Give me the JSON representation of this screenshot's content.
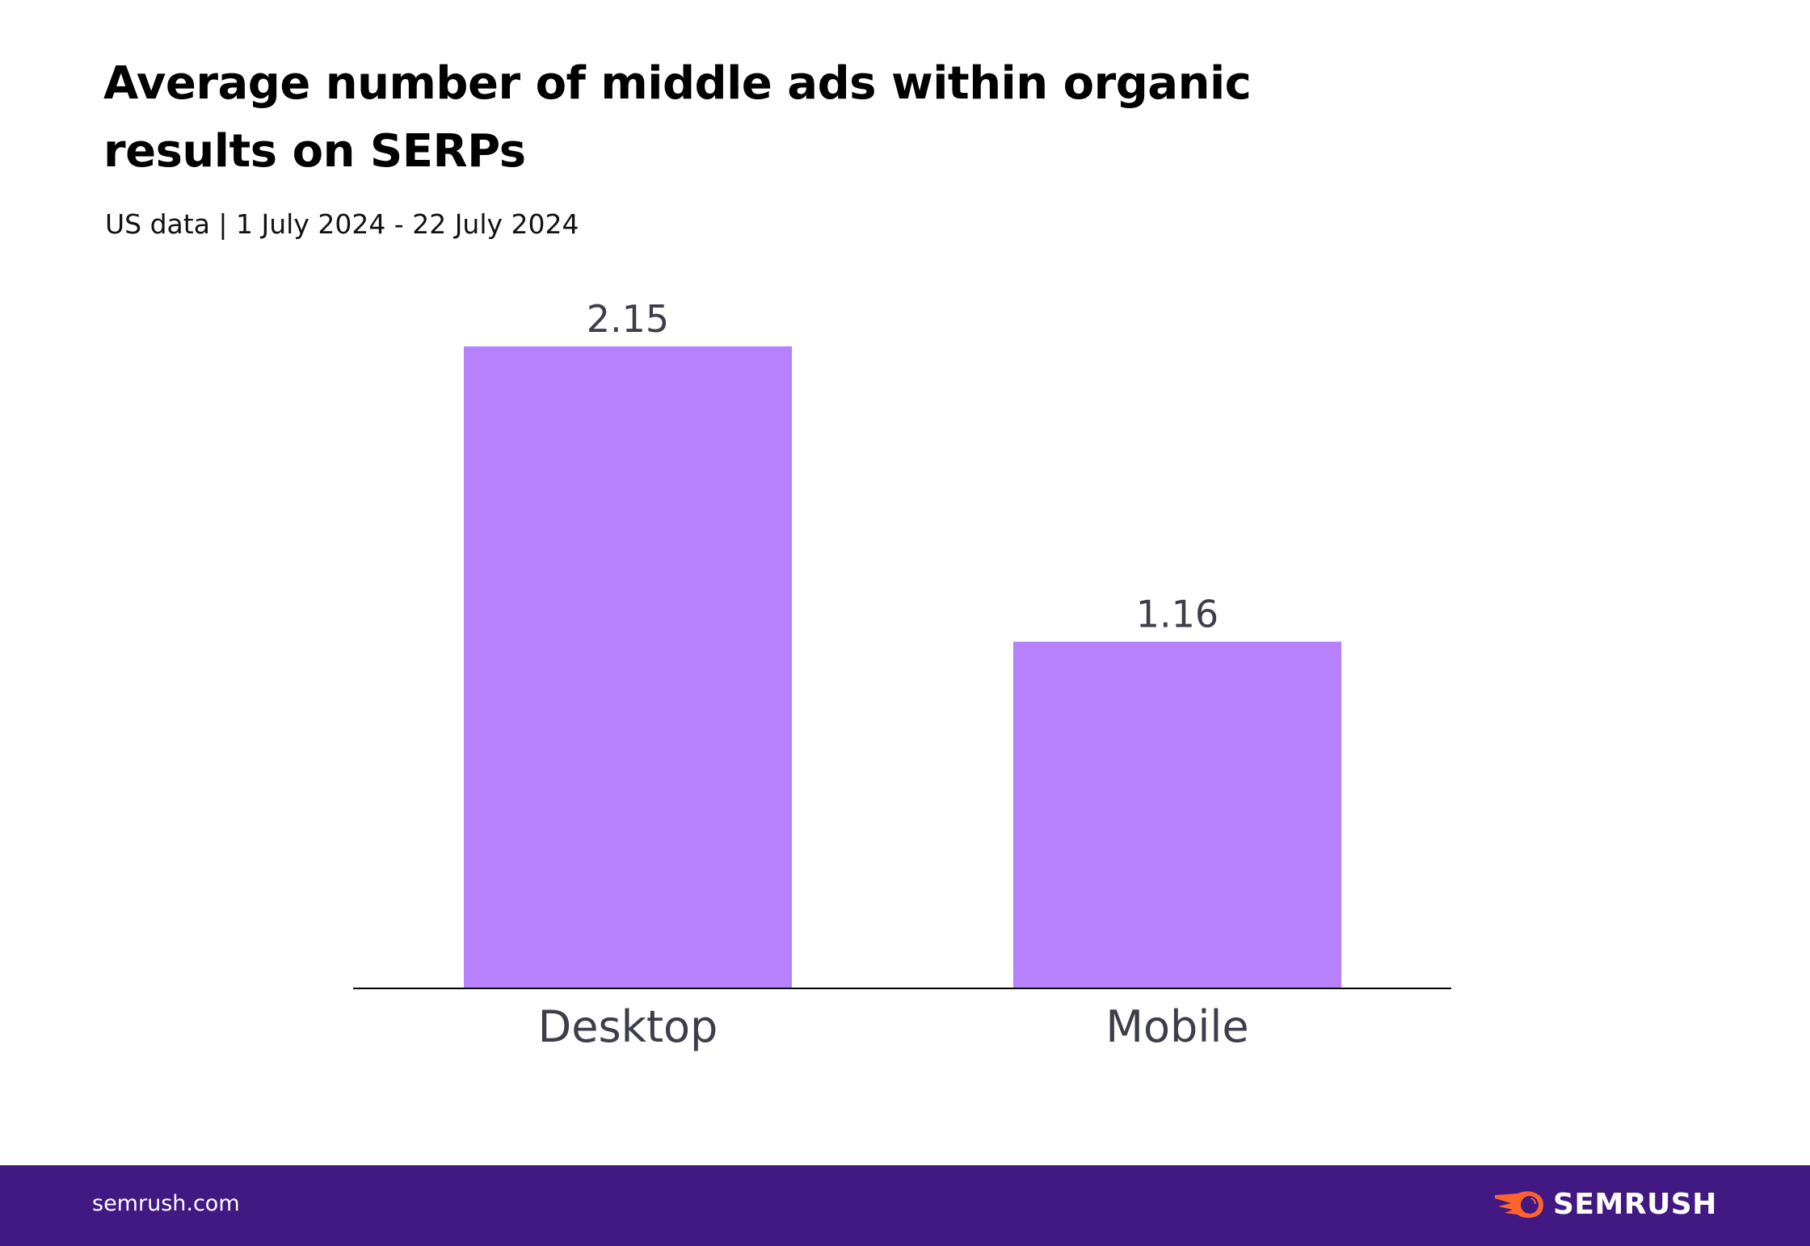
{
  "chart_data": {
    "type": "bar",
    "title": "Average number of middle ads within organic results on SERPs",
    "subtitle": "US data | 1 July 2024 - 22 July 2024",
    "categories": [
      "Desktop",
      "Mobile"
    ],
    "values": [
      2.15,
      1.16
    ],
    "data_labels": [
      "2.15",
      "1.16"
    ],
    "xlabel": "",
    "ylabel": "",
    "ylim": [
      0,
      2.15
    ],
    "grid": false,
    "bar_color": "#b781fe",
    "label_color": "#3d3e4a"
  },
  "footer": {
    "url": "semrush.com",
    "brand": "SEMRUSH",
    "background": "#421983",
    "logo_color": "#ff642d"
  }
}
